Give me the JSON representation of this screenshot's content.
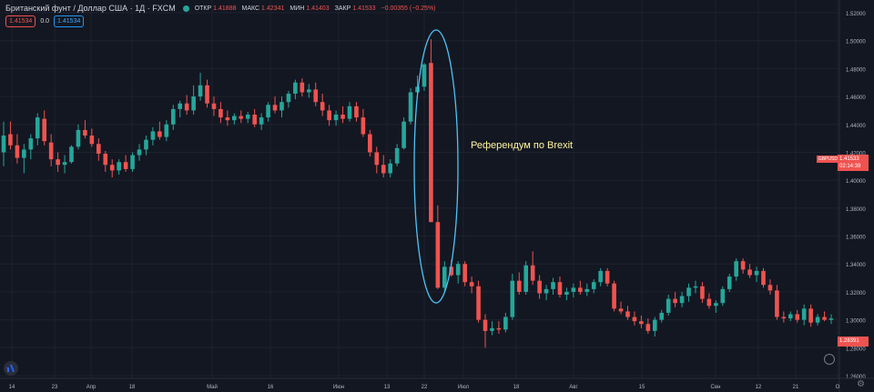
{
  "header": {
    "symbol_title": "Британский фунт / Доллар США · 1Д · FXCM",
    "open_label": "ОТКР",
    "open_value": "1.41888",
    "high_label": "МАКС",
    "high_value": "1.42341",
    "low_label": "МИН",
    "low_value": "1.41403",
    "close_label": "ЗАКР",
    "close_value": "1.41533",
    "change": "−0.00355 (−0.25%)"
  },
  "pills": {
    "sell": "1.41534",
    "spread": "0.0",
    "buy": "1.41534"
  },
  "price_axis": {
    "ticks": [
      "1.52000",
      "1.50000",
      "1.48000",
      "1.46000",
      "1.44000",
      "1.42000",
      "1.40000",
      "1.38000",
      "1.36000",
      "1.34000",
      "1.32000",
      "1.30000",
      "1.28000",
      "1.26000"
    ]
  },
  "price_label": {
    "value": "1.41533",
    "countdown": "02:14:39",
    "symbol": "GBPUSD"
  },
  "low_label": "1.28391",
  "time_axis": {
    "ticks": [
      "14",
      "23",
      "Апр",
      "18",
      "Май",
      "16",
      "Июн",
      "13",
      "22",
      "Июл",
      "18",
      "Авг",
      "15",
      "Сен",
      "12",
      "21",
      "О"
    ]
  },
  "annotation": "Референдум по Brexit",
  "colors": {
    "up": "#26a69a",
    "down": "#ef5350",
    "background": "#131722",
    "ellipse": "#4fc3f7",
    "annotation": "#fff59d"
  },
  "icons": {
    "logo": "tradingview-logo-icon",
    "settings": "gear-icon",
    "clock": "clock-icon"
  },
  "chart_data": {
    "type": "candlestick",
    "ylim": [
      1.26,
      1.52
    ],
    "candles": [
      {
        "o": 1.42,
        "h": 1.442,
        "l": 1.41,
        "c": 1.432
      },
      {
        "o": 1.433,
        "h": 1.442,
        "l": 1.422,
        "c": 1.425
      },
      {
        "o": 1.425,
        "h": 1.433,
        "l": 1.412,
        "c": 1.416
      },
      {
        "o": 1.416,
        "h": 1.426,
        "l": 1.405,
        "c": 1.422
      },
      {
        "o": 1.422,
        "h": 1.433,
        "l": 1.415,
        "c": 1.43
      },
      {
        "o": 1.43,
        "h": 1.448,
        "l": 1.425,
        "c": 1.445
      },
      {
        "o": 1.444,
        "h": 1.45,
        "l": 1.425,
        "c": 1.428
      },
      {
        "o": 1.427,
        "h": 1.433,
        "l": 1.41,
        "c": 1.415
      },
      {
        "o": 1.415,
        "h": 1.42,
        "l": 1.406,
        "c": 1.411
      },
      {
        "o": 1.411,
        "h": 1.418,
        "l": 1.405,
        "c": 1.413
      },
      {
        "o": 1.413,
        "h": 1.425,
        "l": 1.412,
        "c": 1.424
      },
      {
        "o": 1.424,
        "h": 1.44,
        "l": 1.422,
        "c": 1.436
      },
      {
        "o": 1.436,
        "h": 1.443,
        "l": 1.43,
        "c": 1.432
      },
      {
        "o": 1.432,
        "h": 1.437,
        "l": 1.424,
        "c": 1.426
      },
      {
        "o": 1.426,
        "h": 1.43,
        "l": 1.414,
        "c": 1.419
      },
      {
        "o": 1.419,
        "h": 1.421,
        "l": 1.406,
        "c": 1.411
      },
      {
        "o": 1.411,
        "h": 1.415,
        "l": 1.402,
        "c": 1.407
      },
      {
        "o": 1.407,
        "h": 1.415,
        "l": 1.404,
        "c": 1.413
      },
      {
        "o": 1.413,
        "h": 1.418,
        "l": 1.406,
        "c": 1.408
      },
      {
        "o": 1.408,
        "h": 1.42,
        "l": 1.406,
        "c": 1.418
      },
      {
        "o": 1.418,
        "h": 1.426,
        "l": 1.414,
        "c": 1.422
      },
      {
        "o": 1.422,
        "h": 1.432,
        "l": 1.418,
        "c": 1.429
      },
      {
        "o": 1.429,
        "h": 1.438,
        "l": 1.425,
        "c": 1.435
      },
      {
        "o": 1.435,
        "h": 1.442,
        "l": 1.429,
        "c": 1.431
      },
      {
        "o": 1.431,
        "h": 1.443,
        "l": 1.428,
        "c": 1.44
      },
      {
        "o": 1.44,
        "h": 1.454,
        "l": 1.436,
        "c": 1.451
      },
      {
        "o": 1.451,
        "h": 1.457,
        "l": 1.445,
        "c": 1.455
      },
      {
        "o": 1.455,
        "h": 1.461,
        "l": 1.447,
        "c": 1.45
      },
      {
        "o": 1.45,
        "h": 1.468,
        "l": 1.447,
        "c": 1.46
      },
      {
        "o": 1.46,
        "h": 1.477,
        "l": 1.457,
        "c": 1.468
      },
      {
        "o": 1.468,
        "h": 1.472,
        "l": 1.452,
        "c": 1.455
      },
      {
        "o": 1.455,
        "h": 1.46,
        "l": 1.446,
        "c": 1.451
      },
      {
        "o": 1.451,
        "h": 1.456,
        "l": 1.441,
        "c": 1.445
      },
      {
        "o": 1.445,
        "h": 1.45,
        "l": 1.439,
        "c": 1.443
      },
      {
        "o": 1.443,
        "h": 1.448,
        "l": 1.44,
        "c": 1.446
      },
      {
        "o": 1.446,
        "h": 1.45,
        "l": 1.441,
        "c": 1.444
      },
      {
        "o": 1.444,
        "h": 1.449,
        "l": 1.441,
        "c": 1.447
      },
      {
        "o": 1.447,
        "h": 1.451,
        "l": 1.438,
        "c": 1.44
      },
      {
        "o": 1.44,
        "h": 1.448,
        "l": 1.436,
        "c": 1.445
      },
      {
        "o": 1.445,
        "h": 1.456,
        "l": 1.442,
        "c": 1.454
      },
      {
        "o": 1.454,
        "h": 1.46,
        "l": 1.448,
        "c": 1.45
      },
      {
        "o": 1.45,
        "h": 1.46,
        "l": 1.445,
        "c": 1.456
      },
      {
        "o": 1.456,
        "h": 1.464,
        "l": 1.452,
        "c": 1.462
      },
      {
        "o": 1.462,
        "h": 1.472,
        "l": 1.458,
        "c": 1.47
      },
      {
        "o": 1.47,
        "h": 1.473,
        "l": 1.46,
        "c": 1.463
      },
      {
        "o": 1.463,
        "h": 1.469,
        "l": 1.459,
        "c": 1.465
      },
      {
        "o": 1.465,
        "h": 1.47,
        "l": 1.453,
        "c": 1.456
      },
      {
        "o": 1.456,
        "h": 1.462,
        "l": 1.446,
        "c": 1.45
      },
      {
        "o": 1.45,
        "h": 1.454,
        "l": 1.439,
        "c": 1.443
      },
      {
        "o": 1.443,
        "h": 1.45,
        "l": 1.439,
        "c": 1.447
      },
      {
        "o": 1.447,
        "h": 1.453,
        "l": 1.441,
        "c": 1.444
      },
      {
        "o": 1.444,
        "h": 1.456,
        "l": 1.442,
        "c": 1.453
      },
      {
        "o": 1.453,
        "h": 1.456,
        "l": 1.442,
        "c": 1.445
      },
      {
        "o": 1.445,
        "h": 1.451,
        "l": 1.431,
        "c": 1.433
      },
      {
        "o": 1.433,
        "h": 1.436,
        "l": 1.417,
        "c": 1.42
      },
      {
        "o": 1.42,
        "h": 1.424,
        "l": 1.405,
        "c": 1.411
      },
      {
        "o": 1.411,
        "h": 1.418,
        "l": 1.402,
        "c": 1.405
      },
      {
        "o": 1.405,
        "h": 1.415,
        "l": 1.402,
        "c": 1.412
      },
      {
        "o": 1.412,
        "h": 1.426,
        "l": 1.41,
        "c": 1.423
      },
      {
        "o": 1.423,
        "h": 1.445,
        "l": 1.422,
        "c": 1.442
      },
      {
        "o": 1.442,
        "h": 1.466,
        "l": 1.44,
        "c": 1.463
      },
      {
        "o": 1.463,
        "h": 1.475,
        "l": 1.459,
        "c": 1.467
      },
      {
        "o": 1.467,
        "h": 1.484,
        "l": 1.464,
        "c": 1.483
      },
      {
        "o": 1.484,
        "h": 1.501,
        "l": 1.37,
        "c": 1.37
      },
      {
        "o": 1.37,
        "h": 1.382,
        "l": 1.322,
        "c": 1.323
      },
      {
        "o": 1.323,
        "h": 1.342,
        "l": 1.32,
        "c": 1.338
      },
      {
        "o": 1.338,
        "h": 1.343,
        "l": 1.331,
        "c": 1.332
      },
      {
        "o": 1.332,
        "h": 1.342,
        "l": 1.326,
        "c": 1.34
      },
      {
        "o": 1.34,
        "h": 1.342,
        "l": 1.324,
        "c": 1.327
      },
      {
        "o": 1.327,
        "h": 1.331,
        "l": 1.319,
        "c": 1.324
      },
      {
        "o": 1.324,
        "h": 1.328,
        "l": 1.298,
        "c": 1.3
      },
      {
        "o": 1.3,
        "h": 1.304,
        "l": 1.28,
        "c": 1.292
      },
      {
        "o": 1.292,
        "h": 1.299,
        "l": 1.289,
        "c": 1.294
      },
      {
        "o": 1.294,
        "h": 1.299,
        "l": 1.29,
        "c": 1.293
      },
      {
        "o": 1.293,
        "h": 1.305,
        "l": 1.291,
        "c": 1.302
      },
      {
        "o": 1.302,
        "h": 1.333,
        "l": 1.3,
        "c": 1.328
      },
      {
        "o": 1.328,
        "h": 1.334,
        "l": 1.318,
        "c": 1.32
      },
      {
        "o": 1.32,
        "h": 1.342,
        "l": 1.318,
        "c": 1.339
      },
      {
        "o": 1.339,
        "h": 1.349,
        "l": 1.325,
        "c": 1.328
      },
      {
        "o": 1.328,
        "h": 1.332,
        "l": 1.315,
        "c": 1.319
      },
      {
        "o": 1.319,
        "h": 1.325,
        "l": 1.314,
        "c": 1.322
      },
      {
        "o": 1.322,
        "h": 1.33,
        "l": 1.318,
        "c": 1.327
      },
      {
        "o": 1.327,
        "h": 1.331,
        "l": 1.316,
        "c": 1.318
      },
      {
        "o": 1.318,
        "h": 1.323,
        "l": 1.314,
        "c": 1.32
      },
      {
        "o": 1.32,
        "h": 1.326,
        "l": 1.316,
        "c": 1.323
      },
      {
        "o": 1.323,
        "h": 1.328,
        "l": 1.318,
        "c": 1.32
      },
      {
        "o": 1.32,
        "h": 1.326,
        "l": 1.317,
        "c": 1.322
      },
      {
        "o": 1.322,
        "h": 1.329,
        "l": 1.319,
        "c": 1.327
      },
      {
        "o": 1.327,
        "h": 1.337,
        "l": 1.324,
        "c": 1.335
      },
      {
        "o": 1.335,
        "h": 1.337,
        "l": 1.324,
        "c": 1.326
      },
      {
        "o": 1.326,
        "h": 1.328,
        "l": 1.306,
        "c": 1.308
      },
      {
        "o": 1.308,
        "h": 1.313,
        "l": 1.304,
        "c": 1.306
      },
      {
        "o": 1.306,
        "h": 1.31,
        "l": 1.3,
        "c": 1.302
      },
      {
        "o": 1.302,
        "h": 1.306,
        "l": 1.296,
        "c": 1.299
      },
      {
        "o": 1.299,
        "h": 1.303,
        "l": 1.294,
        "c": 1.297
      },
      {
        "o": 1.297,
        "h": 1.301,
        "l": 1.29,
        "c": 1.292
      },
      {
        "o": 1.292,
        "h": 1.302,
        "l": 1.288,
        "c": 1.3
      },
      {
        "o": 1.3,
        "h": 1.307,
        "l": 1.298,
        "c": 1.305
      },
      {
        "o": 1.305,
        "h": 1.318,
        "l": 1.303,
        "c": 1.315
      },
      {
        "o": 1.315,
        "h": 1.32,
        "l": 1.309,
        "c": 1.312
      },
      {
        "o": 1.312,
        "h": 1.32,
        "l": 1.309,
        "c": 1.317
      },
      {
        "o": 1.317,
        "h": 1.326,
        "l": 1.313,
        "c": 1.323
      },
      {
        "o": 1.323,
        "h": 1.328,
        "l": 1.319,
        "c": 1.324
      },
      {
        "o": 1.324,
        "h": 1.327,
        "l": 1.312,
        "c": 1.315
      },
      {
        "o": 1.315,
        "h": 1.319,
        "l": 1.308,
        "c": 1.31
      },
      {
        "o": 1.31,
        "h": 1.314,
        "l": 1.305,
        "c": 1.312
      },
      {
        "o": 1.312,
        "h": 1.324,
        "l": 1.31,
        "c": 1.322
      },
      {
        "o": 1.322,
        "h": 1.333,
        "l": 1.32,
        "c": 1.331
      },
      {
        "o": 1.331,
        "h": 1.344,
        "l": 1.328,
        "c": 1.342
      },
      {
        "o": 1.342,
        "h": 1.344,
        "l": 1.333,
        "c": 1.336
      },
      {
        "o": 1.336,
        "h": 1.34,
        "l": 1.33,
        "c": 1.332
      },
      {
        "o": 1.332,
        "h": 1.338,
        "l": 1.327,
        "c": 1.335
      },
      {
        "o": 1.335,
        "h": 1.337,
        "l": 1.323,
        "c": 1.325
      },
      {
        "o": 1.325,
        "h": 1.329,
        "l": 1.318,
        "c": 1.321
      },
      {
        "o": 1.321,
        "h": 1.325,
        "l": 1.3,
        "c": 1.302
      },
      {
        "o": 1.302,
        "h": 1.306,
        "l": 1.298,
        "c": 1.301
      },
      {
        "o": 1.301,
        "h": 1.306,
        "l": 1.299,
        "c": 1.304
      },
      {
        "o": 1.304,
        "h": 1.307,
        "l": 1.298,
        "c": 1.3
      },
      {
        "o": 1.3,
        "h": 1.311,
        "l": 1.296,
        "c": 1.308
      },
      {
        "o": 1.308,
        "h": 1.311,
        "l": 1.295,
        "c": 1.298
      },
      {
        "o": 1.298,
        "h": 1.304,
        "l": 1.296,
        "c": 1.302
      },
      {
        "o": 1.302,
        "h": 1.306,
        "l": 1.299,
        "c": 1.3
      },
      {
        "o": 1.3,
        "h": 1.304,
        "l": 1.297,
        "c": 1.301
      }
    ]
  }
}
